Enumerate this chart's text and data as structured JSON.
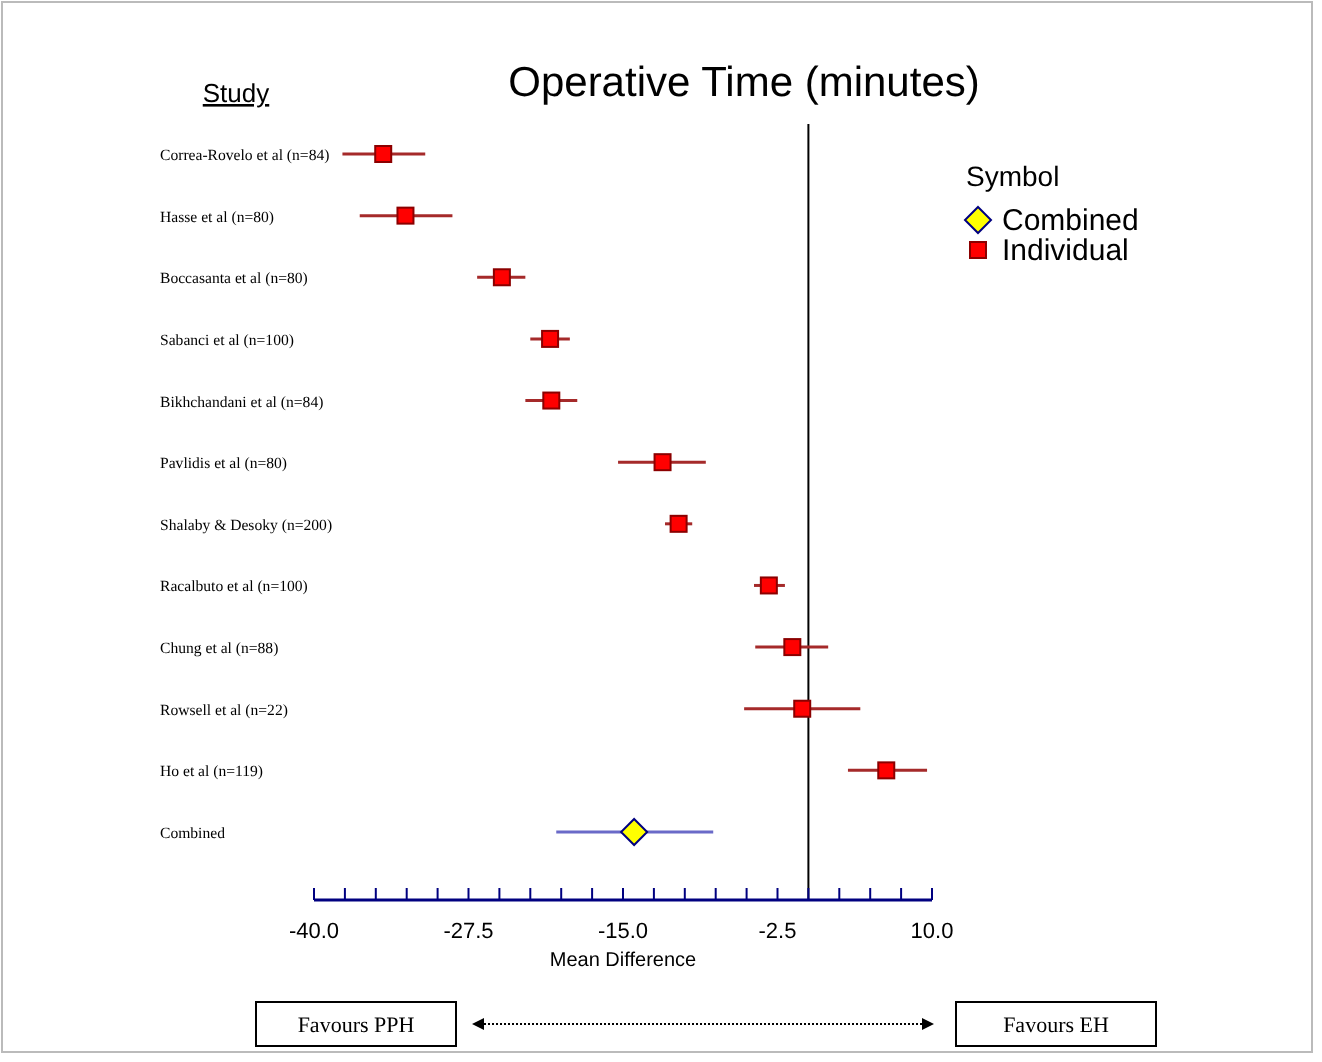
{
  "chart_data": {
    "type": "scatter",
    "orientation": "horizontal",
    "title": "Operative Time (minutes)",
    "ylabel": "Study",
    "xlabel": "Mean Difference",
    "legend_title": "Symbol",
    "legend": "top right",
    "grid": false,
    "categories": [
      "Correa-Rovelo et al (n=84)",
      "Hasse et al (n=80)",
      "Boccasanta et al (n=80)",
      "Sabanci et al (n=100)",
      "Bikhchandani et al (n=84)",
      "Pavlidis et al (n=80)",
      "Shalaby & Desoky (n=200)",
      "Racalbuto et al (n=100)",
      "Chung et al (n=88)",
      "Rowsell et al (n=22)",
      "Ho et al (n=119)",
      "Combined"
    ],
    "series": [
      {
        "name": "Combined",
        "color": "#ffff00",
        "marker": "diamond",
        "values": [
          null,
          null,
          null,
          null,
          null,
          null,
          null,
          null,
          null,
          null,
          null,
          -14.1
        ],
        "errors": [
          null,
          null,
          null,
          null,
          null,
          null,
          null,
          null,
          null,
          null,
          null,
          [
            -20.4,
            -7.7
          ]
        ]
      },
      {
        "name": "Individual",
        "color": "#ff0000",
        "marker": "square",
        "values": [
          -34.4,
          -32.6,
          -24.8,
          -20.9,
          -20.8,
          -11.8,
          -10.5,
          -3.2,
          -1.3,
          -0.5,
          6.3,
          null
        ],
        "errors": [
          [
            -37.7,
            -31.0
          ],
          [
            -36.3,
            -28.8
          ],
          [
            -26.8,
            -22.9
          ],
          [
            -22.5,
            -19.3
          ],
          [
            -22.9,
            -18.7
          ],
          [
            -15.4,
            -8.3
          ],
          [
            -11.6,
            -9.4
          ],
          [
            -4.4,
            -1.9
          ],
          [
            -4.3,
            1.6
          ],
          [
            -5.2,
            4.2
          ],
          [
            3.2,
            9.6
          ],
          null
        ]
      }
    ],
    "xlim": [
      -40,
      10
    ],
    "xticks": [
      {
        "value": -40,
        "label": "-40.0"
      },
      {
        "value": -37.5,
        "label": null
      },
      {
        "value": -35,
        "label": null
      },
      {
        "value": -32.5,
        "label": null
      },
      {
        "value": -30,
        "label": null
      },
      {
        "value": -27.5,
        "label": "-27.5"
      },
      {
        "value": -25,
        "label": null
      },
      {
        "value": -22.5,
        "label": null
      },
      {
        "value": -20,
        "label": null
      },
      {
        "value": -17.5,
        "label": null
      },
      {
        "value": -15,
        "label": "-15.0"
      },
      {
        "value": -12.5,
        "label": null
      },
      {
        "value": -10,
        "label": null
      },
      {
        "value": -7.5,
        "label": null
      },
      {
        "value": -5,
        "label": null
      },
      {
        "value": -2.5,
        "label": "-2.5"
      },
      {
        "value": 0,
        "label": null
      },
      {
        "value": 2.5,
        "label": null
      },
      {
        "value": 5,
        "label": null
      },
      {
        "value": 7.5,
        "label": null
      },
      {
        "value": 10,
        "label": "10.0"
      }
    ],
    "ref_lines": [
      {
        "axis": "x",
        "value": 0,
        "color": "#000000"
      }
    ],
    "annotations": [
      "Favours PPH",
      "Favours EH"
    ]
  }
}
